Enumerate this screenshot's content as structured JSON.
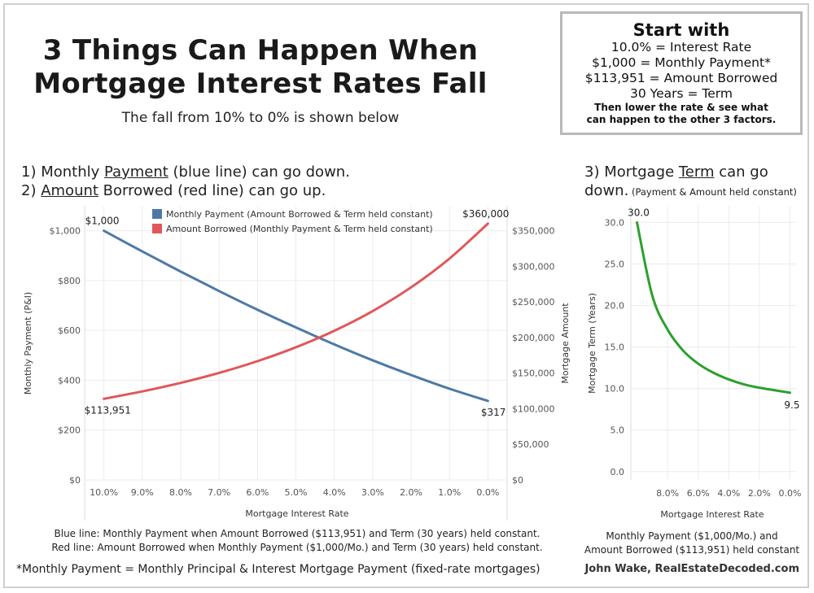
{
  "header": {
    "title_line1": "3 Things Can Happen When",
    "title_line2": "Mortgage Interest Rates Fall",
    "subtitle": "The fall from 10% to 0% is shown below"
  },
  "start_box": {
    "heading": "Start with",
    "lines": [
      "10.0% = Interest Rate",
      "$1,000 = Monthly Payment*",
      "$113,951 = Amount Borrowed",
      "30 Years = Term"
    ],
    "note_line1": "Then lower the rate & see what",
    "note_line2": "can happen to the other 3 factors."
  },
  "left_desc": {
    "line1_prefix": "1) Monthly ",
    "line1_underlined": "Payment",
    "line1_suffix": " (blue line) can go down.",
    "line2_prefix": "2) ",
    "line2_underlined": "Amount",
    "line2_suffix": " Borrowed (red line) can go up."
  },
  "right_desc": {
    "line1_prefix": "3) Mortgage ",
    "line1_underlined": "Term",
    "line1_suffix": " can go",
    "line2_main": "down.",
    "line2_small": " (Payment & Amount held constant)"
  },
  "colors": {
    "blue": "#4e79a7",
    "red": "#e15759",
    "green": "#2ca02c",
    "grid": "#ececec",
    "axis_text": "#555555"
  },
  "chart_data": [
    {
      "type": "line",
      "x": [
        10.0,
        9.0,
        8.0,
        7.0,
        6.0,
        5.0,
        4.0,
        3.0,
        2.0,
        1.0,
        0.0
      ],
      "xlabel": "Mortgage Interest Rate",
      "x_tick_labels": [
        "10.0%",
        "9.0%",
        "8.0%",
        "7.0%",
        "6.0%",
        "5.0%",
        "4.0%",
        "3.0%",
        "2.0%",
        "1.0%",
        "0.0%"
      ],
      "xlim": [
        10.5,
        -0.5
      ],
      "y_left": {
        "label": "Monthly Payment (P&I)",
        "ylim": [
          0,
          1100
        ],
        "ticks": [
          0,
          200,
          400,
          600,
          800,
          1000
        ],
        "tick_labels": [
          "$0",
          "$200",
          "$400",
          "$600",
          "$800",
          "$1,000"
        ]
      },
      "y_right": {
        "label": "Mortgage Amount",
        "ylim": [
          0,
          385000
        ],
        "ticks": [
          0,
          50000,
          100000,
          150000,
          200000,
          250000,
          300000,
          350000
        ],
        "tick_labels": [
          "$0",
          "$50,000",
          "$100,000",
          "$150,000",
          "$200,000",
          "$250,000",
          "$300,000",
          "$350,000"
        ]
      },
      "series": [
        {
          "name": "Monthly Payment (Amount Borrowed & Term held constant)",
          "axis": "left",
          "color": "#4e79a7",
          "values": [
            1000,
            917,
            836,
            758,
            683,
            612,
            544,
            480,
            421,
            366,
            317
          ]
        },
        {
          "name": "Amount Borrowed (Monthly Payment & Term held constant)",
          "axis": "right",
          "color": "#e15759",
          "values": [
            113951,
            124282,
            136283,
            150308,
            166792,
            186282,
            209461,
            237189,
            270550,
            310917,
            360000
          ]
        }
      ],
      "annotations": {
        "blue_start": "$1,000",
        "blue_end": "$317",
        "red_start": "$113,951",
        "red_end": "$360,000"
      },
      "legend": "top",
      "caption_line1": "Blue line: Monthly Payment when Amount Borrowed ($113,951) and Term (30 years) held constant.",
      "caption_line2": "Red line: Amount Borrowed when Monthly Payment ($1,000/Mo.) and Term (30 years) held constant."
    },
    {
      "type": "line",
      "x": [
        10.0,
        9.0,
        8.0,
        7.0,
        6.0,
        5.0,
        4.0,
        3.0,
        2.0,
        1.0,
        0.0
      ],
      "xlabel": "Mortgage Interest Rate",
      "x_tick_labels": [
        "8.0%",
        "6.0%",
        "4.0%",
        "2.0%",
        "0.0%"
      ],
      "x_ticks": [
        8,
        6,
        4,
        2,
        0
      ],
      "xlim": [
        10.4,
        -0.4
      ],
      "ylabel": "Mortgage Term (Years)",
      "ylim": [
        -1,
        32
      ],
      "y_ticks": [
        0,
        5,
        10,
        15,
        20,
        25,
        30
      ],
      "y_tick_labels": [
        "0.0",
        "5.0",
        "10.0",
        "15.0",
        "20.0",
        "25.0",
        "30.0"
      ],
      "series": [
        {
          "name": "",
          "color": "#2ca02c",
          "values": [
            30.0,
            21.2,
            17.1,
            14.6,
            13.0,
            11.9,
            11.1,
            10.5,
            10.1,
            9.8,
            9.5
          ]
        }
      ],
      "annotations": {
        "start": "30.0",
        "end": "9.5"
      },
      "caption_line1": "Monthly Payment ($1,000/Mo.) and",
      "caption_line2": "Amount Borrowed ($113,951) held constant"
    }
  ],
  "footer": {
    "footnote": "*Monthly Payment = Monthly Principal & Interest Mortgage Payment (fixed-rate mortgages)",
    "credit": "John Wake, RealEstateDecoded.com"
  }
}
